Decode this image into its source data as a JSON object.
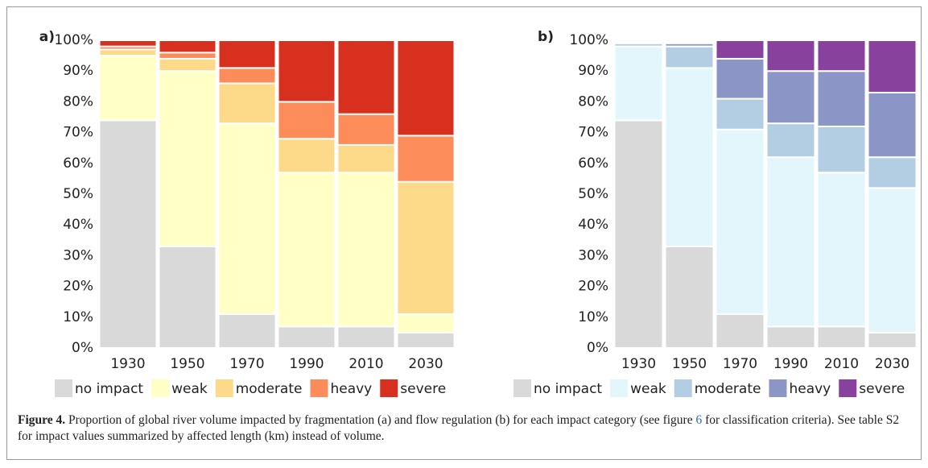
{
  "chart_data": [
    {
      "type": "stacked-bar",
      "panel": "a)",
      "categories": [
        "1930",
        "1950",
        "1970",
        "1990",
        "2010",
        "2030"
      ],
      "series": [
        {
          "name": "no impact",
          "color": "#d9d9d9",
          "values": [
            74,
            33,
            11,
            7,
            7,
            5
          ]
        },
        {
          "name": "weak",
          "color": "#ffffc6",
          "values": [
            21,
            57,
            62,
            50,
            50,
            6
          ]
        },
        {
          "name": "moderate",
          "color": "#fdd98a",
          "values": [
            2,
            4,
            13,
            11,
            9,
            43
          ]
        },
        {
          "name": "heavy",
          "color": "#fc8d5a",
          "values": [
            1,
            2,
            5,
            12,
            10,
            15
          ]
        },
        {
          "name": "severe",
          "color": "#d7301f",
          "values": [
            2,
            4,
            9,
            20,
            24,
            31
          ]
        }
      ],
      "ylim": [
        0,
        100
      ],
      "yticks": [
        {
          "value": 0,
          "label": "0%"
        },
        {
          "value": 10,
          "label": "10%"
        },
        {
          "value": 20,
          "label": "20%"
        },
        {
          "value": 30,
          "label": "30%"
        },
        {
          "value": 40,
          "label": "40%"
        },
        {
          "value": 50,
          "label": "50%"
        },
        {
          "value": 60,
          "label": "60%"
        },
        {
          "value": 70,
          "label": "70%"
        },
        {
          "value": 80,
          "label": "80%"
        },
        {
          "value": 90,
          "label": "90%"
        },
        {
          "value": 100,
          "label": "100%"
        }
      ]
    },
    {
      "type": "stacked-bar",
      "panel": "b)",
      "categories": [
        "1930",
        "1950",
        "1970",
        "1990",
        "2010",
        "2030"
      ],
      "series": [
        {
          "name": "no impact",
          "color": "#d9d9d9",
          "values": [
            74,
            33,
            11,
            7,
            7,
            5
          ]
        },
        {
          "name": "weak",
          "color": "#e3f6fb",
          "values": [
            24,
            58,
            60,
            55,
            50,
            47
          ]
        },
        {
          "name": "moderate",
          "color": "#b3cde3",
          "values": [
            1,
            7,
            10,
            11,
            15,
            10
          ]
        },
        {
          "name": "heavy",
          "color": "#8c96c6",
          "values": [
            0,
            1,
            13,
            17,
            18,
            21
          ]
        },
        {
          "name": "severe",
          "color": "#88419d",
          "values": [
            0,
            0,
            6,
            10,
            10,
            17
          ]
        }
      ],
      "ylim": [
        0,
        100
      ],
      "yticks": [
        {
          "value": 0,
          "label": "0%"
        },
        {
          "value": 10,
          "label": "10%"
        },
        {
          "value": 20,
          "label": "20%"
        },
        {
          "value": 30,
          "label": "30%"
        },
        {
          "value": 40,
          "label": "40%"
        },
        {
          "value": 50,
          "label": "50%"
        },
        {
          "value": 60,
          "label": "60%"
        },
        {
          "value": 70,
          "label": "70%"
        },
        {
          "value": 80,
          "label": "80%"
        },
        {
          "value": 90,
          "label": "90%"
        },
        {
          "value": 100,
          "label": "100%"
        }
      ]
    }
  ],
  "caption": {
    "label": "Figure 4.",
    "text_1": " Proportion of global river volume impacted by fragmentation (a) and flow regulation (b) for each impact category (see figure ",
    "link": "6",
    "text_2": " for classification criteria). See table S2 for impact values summarized by affected length (km) instead of volume."
  }
}
